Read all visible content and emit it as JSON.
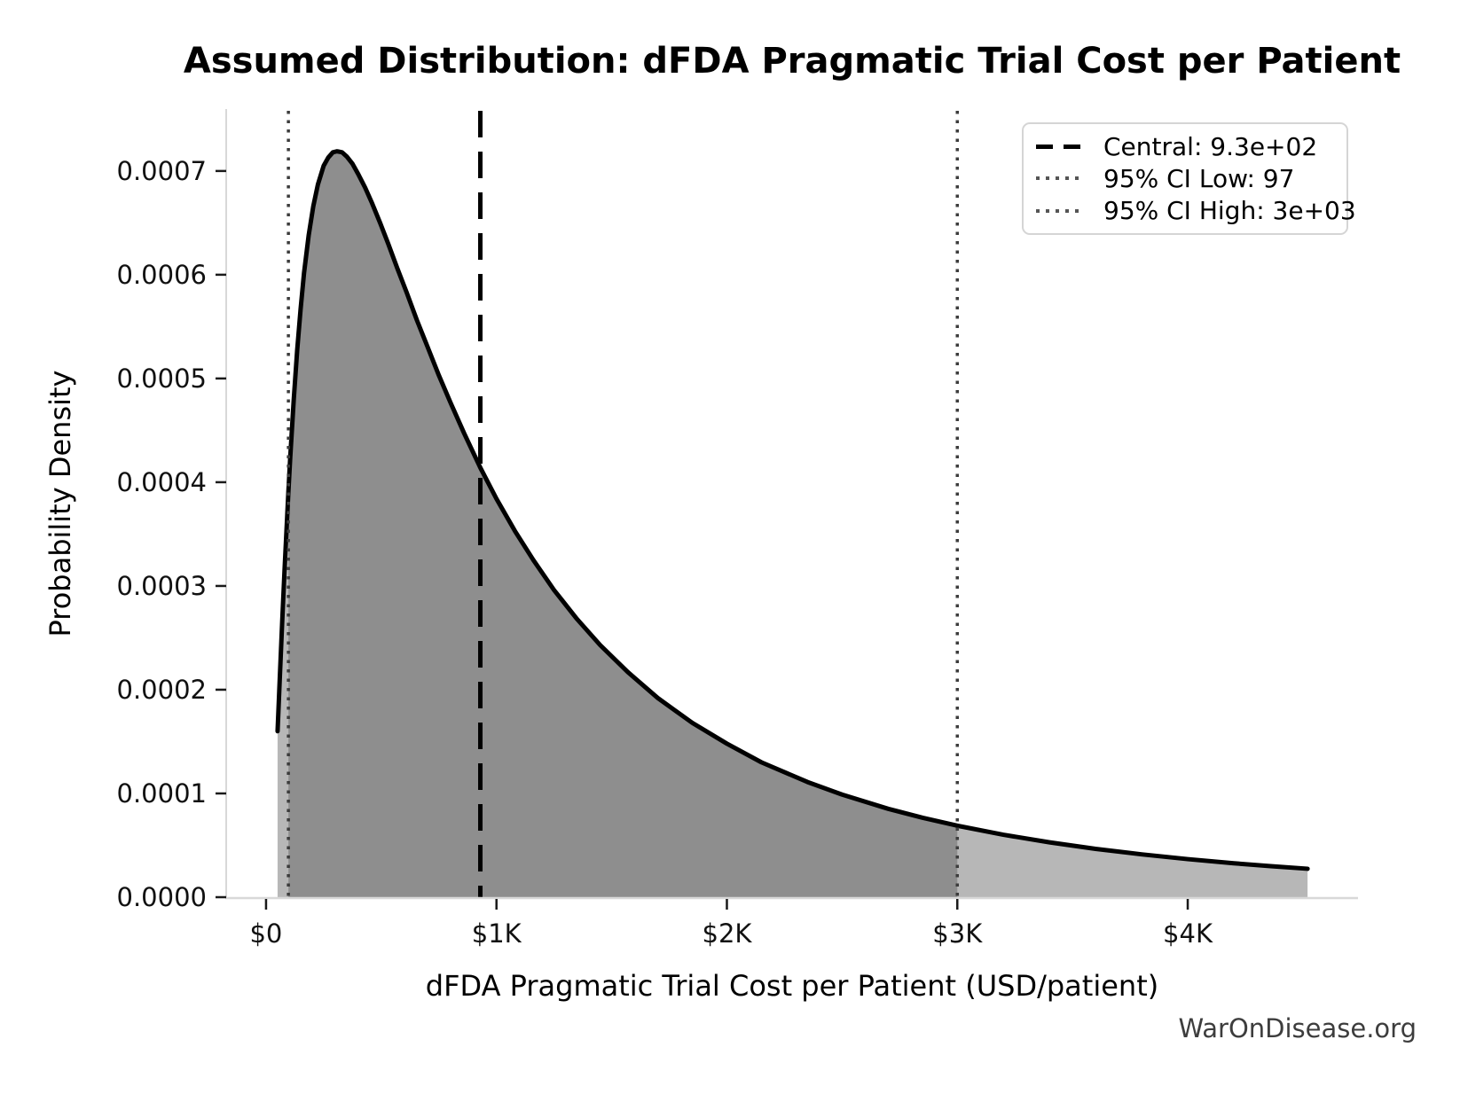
{
  "watermark": "WarOnDisease.org",
  "chart_data": {
    "type": "area",
    "title": "Assumed Distribution: dFDA Pragmatic Trial Cost per Patient",
    "xlabel": "dFDA Pragmatic Trial Cost per Patient (USD/patient)",
    "ylabel": "Probability Density",
    "xlim": [
      -173,
      4739
    ],
    "ylim": [
      0,
      0.000758
    ],
    "grid": false,
    "x_ticks": {
      "values": [
        0,
        1000,
        2000,
        3000,
        4000
      ],
      "labels": [
        "$0",
        "$1K",
        "$2K",
        "$3K",
        "$4K"
      ]
    },
    "y_ticks": {
      "values": [
        0,
        0.0001,
        0.0002,
        0.0003,
        0.0004,
        0.0005,
        0.0006,
        0.0007
      ],
      "labels": [
        "0.0000",
        "0.0001",
        "0.0002",
        "0.0003",
        "0.0004",
        "0.0005",
        "0.0006",
        "0.0007"
      ]
    },
    "pdf": {
      "x": [
        50,
        60,
        70,
        80,
        97,
        105,
        120,
        135,
        150,
        165,
        185,
        205,
        225,
        250,
        270,
        290,
        308,
        330,
        350,
        375,
        400,
        430,
        460,
        495,
        530,
        570,
        610,
        655,
        700,
        750,
        800,
        860,
        930,
        1000,
        1080,
        1160,
        1250,
        1350,
        1450,
        1570,
        1700,
        1850,
        2000,
        2150,
        2350,
        2500,
        2700,
        2850,
        3000,
        3200,
        3400,
        3600,
        3800,
        4000,
        4200,
        4360,
        4520
      ],
      "y": [
        0.00016,
        0.000213,
        0.000265,
        0.000314,
        0.000391,
        0.000424,
        0.000479,
        0.000527,
        0.000567,
        0.000602,
        0.000638,
        0.000666,
        0.000687,
        0.000705,
        0.000713,
        0.000718,
        0.000719,
        0.000718,
        0.000714,
        0.000707,
        0.000697,
        0.000684,
        0.000669,
        0.00065,
        0.00063,
        0.000606,
        0.000583,
        0.000556,
        0.000531,
        0.000503,
        0.000477,
        0.000447,
        0.000414,
        0.000384,
        0.000353,
        0.000325,
        0.000296,
        0.000268,
        0.000243,
        0.000217,
        0.000192,
        0.000168,
        0.000148,
        0.00013,
        0.000111,
        9.89e-05,
        8.52e-05,
        7.65e-05,
        6.89e-05,
        6.02e-05,
        5.29e-05,
        4.66e-05,
        4.13e-05,
        3.67e-05,
        3.27e-05,
        2.99e-05,
        2.74e-05
      ]
    },
    "curve_color": "#000000",
    "fills": {
      "outer": {
        "from": 50,
        "to": 4520,
        "color": "#b7b7b7"
      },
      "inner": {
        "from": 97,
        "to": 3000,
        "color": "#8e8e8e"
      }
    },
    "markers": {
      "central": {
        "value": 930,
        "style": "dashed",
        "color": "#000000"
      },
      "ci_low": {
        "value": 97,
        "style": "dotted",
        "color": "#3c3c3c"
      },
      "ci_high": {
        "value": 3000,
        "style": "dotted",
        "color": "#3c3c3c"
      }
    },
    "legend": {
      "position": "upper right",
      "items": [
        {
          "label": "Central: 9.3e+02",
          "style": "dashed",
          "color": "#000000"
        },
        {
          "label": "95% CI Low: 97",
          "style": "dotted",
          "color": "#555555"
        },
        {
          "label": "95% CI High: 3e+03",
          "style": "dotted",
          "color": "#555555"
        }
      ]
    }
  }
}
